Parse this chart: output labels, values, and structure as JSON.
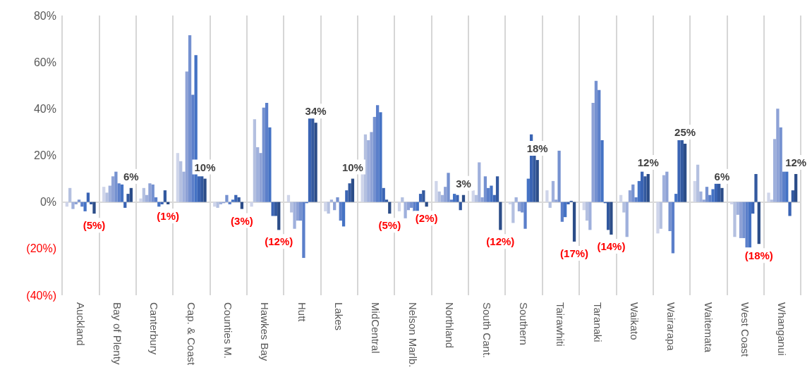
{
  "chart_data": {
    "type": "bar",
    "categories": [
      "Auckland",
      "Bay of Plenty",
      "Canterbury",
      "Cap. & Coast",
      "Counties M.",
      "Hawkes Bay",
      "Hutt",
      "Lakes",
      "MidCentral",
      "Nelson Marlb.",
      "Northland",
      "South Cant.",
      "Southern",
      "Tairawhiti",
      "Taranaki",
      "Waikato",
      "Wairarapa",
      "Waitemata",
      "West Coast",
      "Whanganui"
    ],
    "series": [
      {
        "color": "#cfd5ea",
        "values": [
          -2,
          6.5,
          1.5,
          21,
          -2,
          -2,
          3,
          -4,
          12,
          -4,
          9,
          5,
          -1,
          5,
          -3.5,
          3,
          -13.5,
          9,
          -1,
          4
        ]
      },
      {
        "color": "#b4c0e0",
        "values": [
          6,
          4,
          6,
          17.5,
          -2.5,
          35.5,
          -4.5,
          -5,
          29,
          2,
          4.5,
          3,
          -9,
          -2.5,
          -8,
          -4.5,
          -11.5,
          16,
          -15,
          1
        ]
      },
      {
        "color": "#9fb0dc",
        "values": [
          -3,
          7,
          3,
          13,
          -1,
          23.5,
          -11.5,
          1,
          26.5,
          -7,
          3,
          17,
          2,
          9,
          -12,
          -15,
          11.5,
          4.5,
          -5.5,
          27
        ]
      },
      {
        "color": "#8ea2d6",
        "values": [
          -1,
          11,
          8,
          56,
          -0.5,
          21,
          -8,
          -3.5,
          30,
          -3.5,
          6.5,
          2,
          -4,
          1,
          42.5,
          5,
          13,
          1,
          -15.5,
          40
        ]
      },
      {
        "color": "#7591d0",
        "values": [
          1,
          13,
          7.5,
          71.5,
          3,
          40.5,
          -8,
          2,
          36.5,
          -2.5,
          12.5,
          11,
          -4.5,
          22,
          52,
          7.5,
          -12.5,
          6.5,
          -15.5,
          32
        ]
      },
      {
        "color": "#5b7fca",
        "values": [
          -2,
          8,
          2,
          46,
          -1,
          42.5,
          -24,
          -8,
          41.5,
          -4,
          1,
          6,
          -11.5,
          -8.5,
          48,
          2,
          -22,
          3,
          -19.5,
          13
        ]
      },
      {
        "color": "#4472c4",
        "values": [
          -4,
          7.5,
          -2,
          63,
          1,
          32,
          -0.5,
          -10.5,
          38.5,
          -4,
          3.5,
          7,
          10,
          -6.5,
          26.5,
          9,
          3.5,
          5.5,
          -19.5,
          13
        ]
      },
      {
        "color": "#3a64b4",
        "values": [
          4,
          -2.5,
          -1,
          11,
          3,
          -6,
          36,
          5,
          6,
          3.5,
          3,
          3,
          29,
          -1,
          -0.5,
          13,
          26.5,
          8,
          -5,
          -6
        ]
      },
      {
        "color": "#33599f",
        "values": [
          -1,
          3.5,
          5,
          11,
          2,
          -6,
          36,
          8,
          1,
          5,
          -3.5,
          11,
          20,
          0.5,
          -12,
          11,
          26.5,
          8,
          12,
          5
        ]
      },
      {
        "color": "#2c4d88",
        "values": [
          -5,
          6,
          -1,
          10,
          -3,
          -12,
          34,
          10,
          -5,
          -2,
          3,
          -12,
          18,
          -17,
          -14,
          12,
          25,
          6,
          -18,
          12
        ],
        "value_labels": [
          "(5%)",
          "6%",
          "(1%)",
          "10%",
          "(3%)",
          "(12%)",
          "34%",
          "10%",
          "(5%)",
          "(2%)",
          "3%",
          "(12%)",
          "18%",
          "(17%)",
          "(14%)",
          "12%",
          "25%",
          "6%",
          "(18%)",
          "12%"
        ]
      }
    ],
    "ylim": [
      -40,
      80
    ],
    "yticks": [
      {
        "value": -40,
        "label": "(40%)"
      },
      {
        "value": -20,
        "label": "(20%)"
      },
      {
        "value": 0,
        "label": "0%"
      },
      {
        "value": 20,
        "label": "20%"
      },
      {
        "value": 40,
        "label": "40%"
      },
      {
        "value": 60,
        "label": "60%"
      },
      {
        "value": 80,
        "label": "80%"
      }
    ],
    "grid": "x"
  }
}
